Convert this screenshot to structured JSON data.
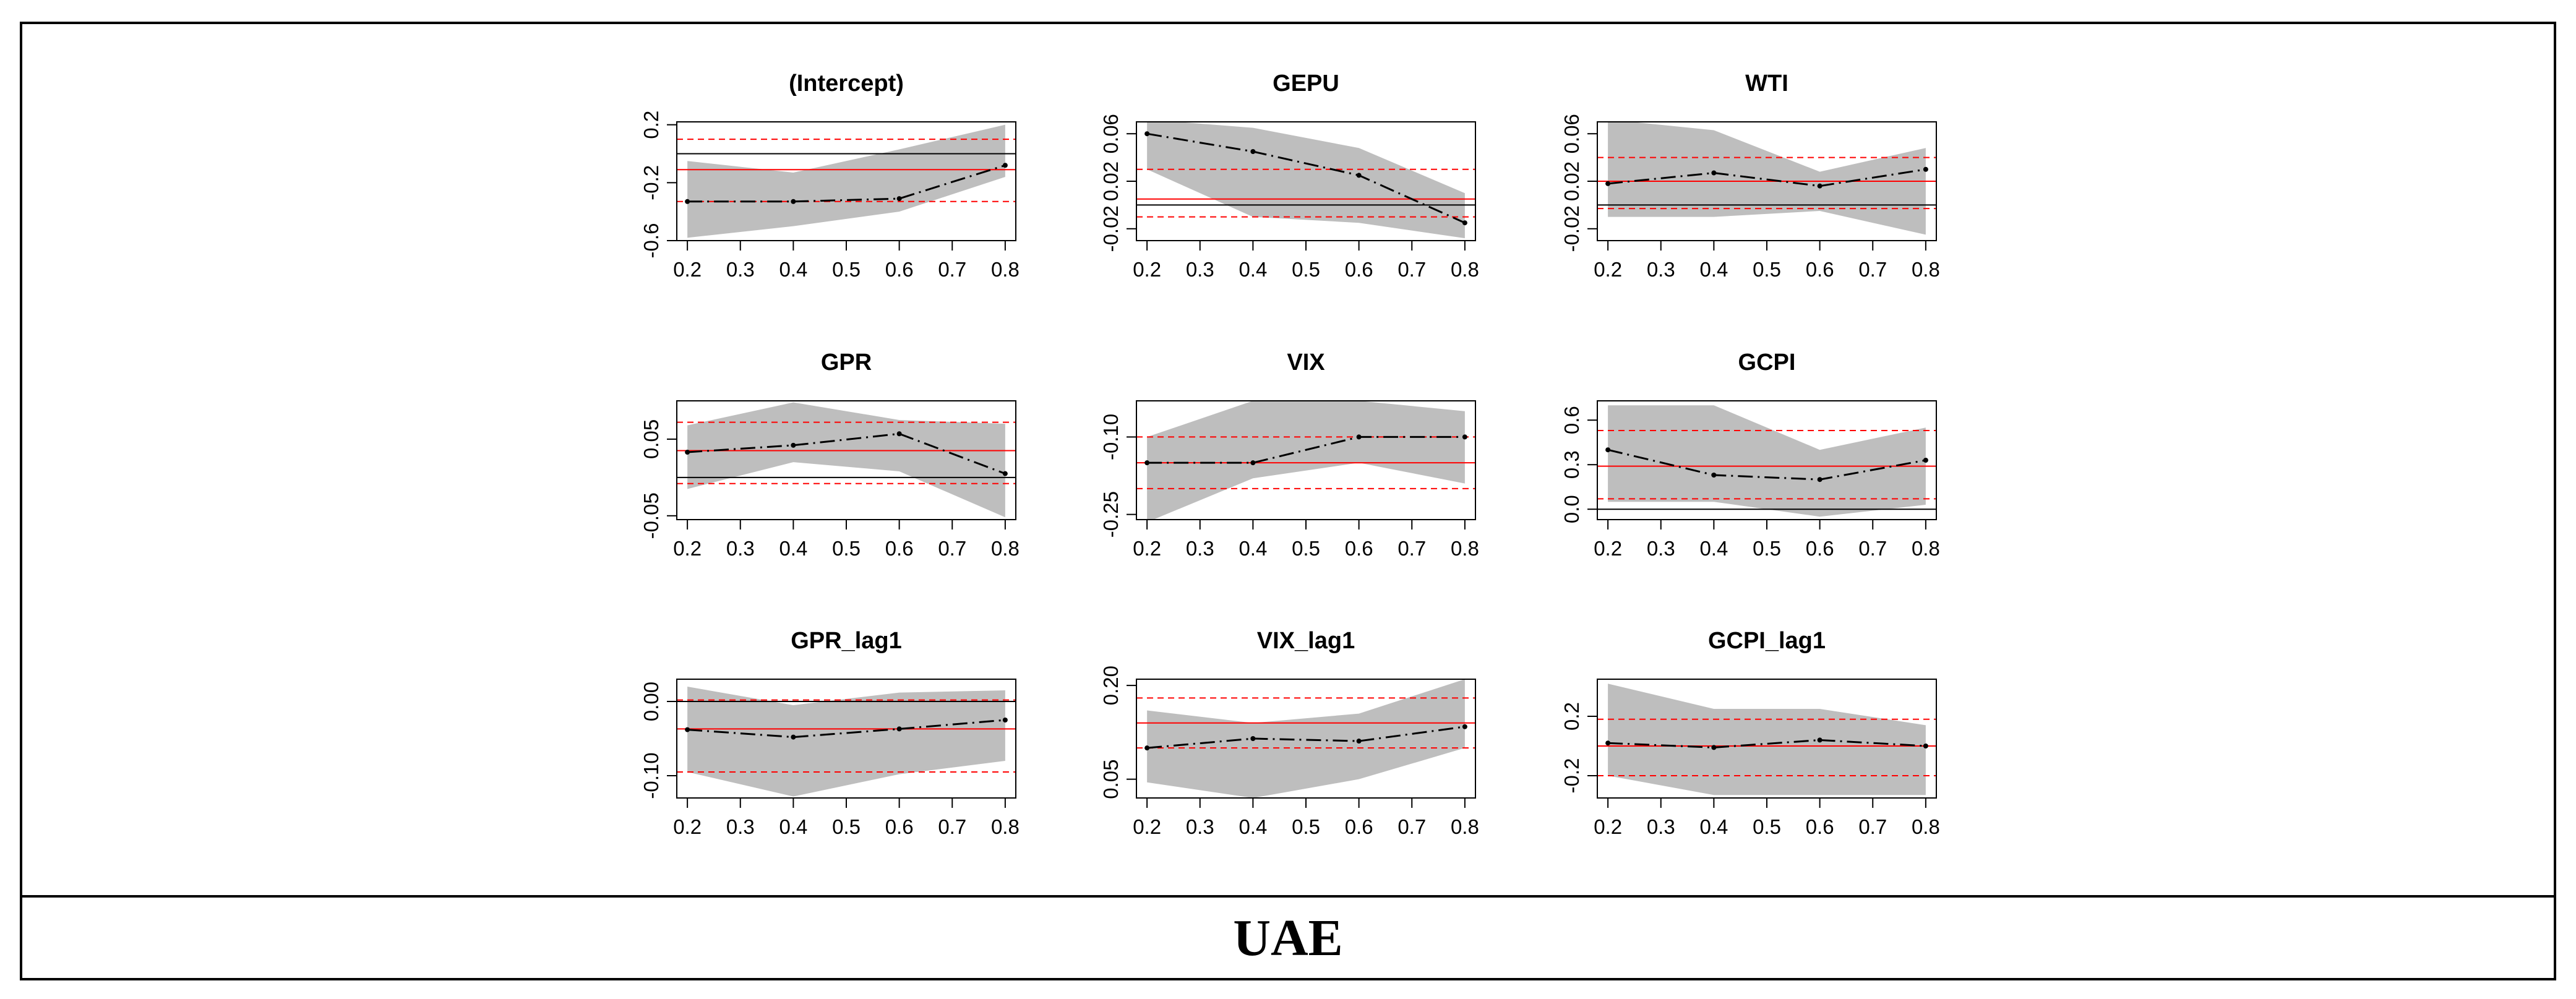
{
  "country_label": "UAE",
  "colors": {
    "band": "#bebebe",
    "estimate": "#000000",
    "ols": "#ff0000",
    "ols_ci": "#ff0000",
    "zero": "#000000"
  },
  "chart_data": [
    {
      "type": "line",
      "title": "(Intercept)",
      "x": [
        0.2,
        0.4,
        0.6,
        0.8
      ],
      "xticks": [
        0.2,
        0.3,
        0.4,
        0.5,
        0.6,
        0.7,
        0.8
      ],
      "xlim": [
        0.18,
        0.82
      ],
      "ylim": [
        -0.6,
        0.22
      ],
      "yticks": [
        -0.6,
        -0.2,
        0.2
      ],
      "ytick_labels": [
        "-0.6",
        "-0.2",
        "0.2"
      ],
      "estimate": [
        -0.33,
        -0.33,
        -0.31,
        -0.08
      ],
      "lower": [
        -0.58,
        -0.5,
        -0.4,
        -0.16
      ],
      "upper": [
        -0.05,
        -0.13,
        0.03,
        0.2
      ],
      "ols": -0.11,
      "ols_lower": -0.33,
      "ols_upper": 0.1,
      "zero": true
    },
    {
      "type": "line",
      "title": "GEPU",
      "x": [
        0.2,
        0.4,
        0.6,
        0.8
      ],
      "xticks": [
        0.2,
        0.3,
        0.4,
        0.5,
        0.6,
        0.7,
        0.8
      ],
      "xlim": [
        0.18,
        0.82
      ],
      "ylim": [
        -0.03,
        0.07
      ],
      "yticks": [
        -0.02,
        0.02,
        0.06
      ],
      "ytick_labels": [
        "-0.02",
        "0.02",
        "0.06"
      ],
      "estimate": [
        0.06,
        0.045,
        0.025,
        -0.015
      ],
      "lower": [
        0.03,
        -0.01,
        -0.015,
        -0.028
      ],
      "upper": [
        0.072,
        0.065,
        0.048,
        0.01
      ],
      "ols": 0.005,
      "ols_lower": -0.01,
      "ols_upper": 0.03,
      "zero": true
    },
    {
      "type": "line",
      "title": "WTI",
      "x": [
        0.2,
        0.4,
        0.6,
        0.8
      ],
      "xticks": [
        0.2,
        0.3,
        0.4,
        0.5,
        0.6,
        0.7,
        0.8
      ],
      "xlim": [
        0.18,
        0.82
      ],
      "ylim": [
        -0.03,
        0.07
      ],
      "yticks": [
        -0.02,
        0.02,
        0.06
      ],
      "ytick_labels": [
        "-0.02",
        "0.02",
        "0.06"
      ],
      "estimate": [
        0.018,
        0.027,
        0.016,
        0.03
      ],
      "lower": [
        -0.01,
        -0.01,
        -0.005,
        -0.025
      ],
      "upper": [
        0.072,
        0.063,
        0.028,
        0.048
      ],
      "ols": 0.02,
      "ols_lower": -0.003,
      "ols_upper": 0.04,
      "zero": true
    },
    {
      "type": "line",
      "title": "GPR",
      "x": [
        0.2,
        0.4,
        0.6,
        0.8
      ],
      "xticks": [
        0.2,
        0.3,
        0.4,
        0.5,
        0.6,
        0.7,
        0.8
      ],
      "xlim": [
        0.18,
        0.82
      ],
      "ylim": [
        -0.055,
        0.1
      ],
      "yticks": [
        -0.05,
        0.05
      ],
      "ytick_labels": [
        "-0.05",
        "0.05"
      ],
      "estimate": [
        0.033,
        0.042,
        0.057,
        0.005
      ],
      "lower": [
        -0.015,
        0.02,
        0.008,
        -0.052
      ],
      "upper": [
        0.068,
        0.098,
        0.075,
        0.07
      ],
      "ols": 0.035,
      "ols_lower": -0.008,
      "ols_upper": 0.072,
      "zero": true
    },
    {
      "type": "line",
      "title": "VIX",
      "x": [
        0.2,
        0.4,
        0.6,
        0.8
      ],
      "xticks": [
        0.2,
        0.3,
        0.4,
        0.5,
        0.6,
        0.7,
        0.8
      ],
      "xlim": [
        0.18,
        0.82
      ],
      "ylim": [
        -0.26,
        -0.03
      ],
      "yticks": [
        -0.25,
        -0.1
      ],
      "ytick_labels": [
        "-0.25",
        "-0.10"
      ],
      "estimate": [
        -0.15,
        -0.15,
        -0.1,
        -0.1
      ],
      "lower": [
        -0.265,
        -0.18,
        -0.15,
        -0.19
      ],
      "upper": [
        -0.1,
        -0.03,
        -0.03,
        -0.05
      ],
      "ols": -0.15,
      "ols_lower": -0.2,
      "ols_upper": -0.1,
      "zero": false
    },
    {
      "type": "line",
      "title": "GCPI",
      "x": [
        0.2,
        0.4,
        0.6,
        0.8
      ],
      "xticks": [
        0.2,
        0.3,
        0.4,
        0.5,
        0.6,
        0.7,
        0.8
      ],
      "xlim": [
        0.18,
        0.82
      ],
      "ylim": [
        -0.07,
        0.73
      ],
      "yticks": [
        0.0,
        0.3,
        0.6
      ],
      "ytick_labels": [
        "0.0",
        "0.3",
        "0.6"
      ],
      "estimate": [
        0.4,
        0.23,
        0.2,
        0.33
      ],
      "lower": [
        0.05,
        0.05,
        -0.05,
        0.03
      ],
      "upper": [
        0.7,
        0.7,
        0.4,
        0.55
      ],
      "ols": 0.29,
      "ols_lower": 0.07,
      "ols_upper": 0.53,
      "zero": true
    },
    {
      "type": "line",
      "title": "GPR_lag1",
      "x": [
        0.2,
        0.4,
        0.6,
        0.8
      ],
      "xticks": [
        0.2,
        0.3,
        0.4,
        0.5,
        0.6,
        0.7,
        0.8
      ],
      "xlim": [
        0.18,
        0.82
      ],
      "ylim": [
        -0.13,
        0.03
      ],
      "yticks": [
        -0.1,
        0.0
      ],
      "ytick_labels": [
        "-0.10",
        "0.00"
      ],
      "estimate": [
        -0.038,
        -0.048,
        -0.037,
        -0.025
      ],
      "lower": [
        -0.095,
        -0.128,
        -0.098,
        -0.08
      ],
      "upper": [
        0.02,
        -0.005,
        0.012,
        0.015
      ],
      "ols": -0.037,
      "ols_lower": -0.095,
      "ols_upper": 0.002,
      "zero": true
    },
    {
      "type": "line",
      "title": "VIX_lag1",
      "x": [
        0.2,
        0.4,
        0.6,
        0.8
      ],
      "xticks": [
        0.2,
        0.3,
        0.4,
        0.5,
        0.6,
        0.7,
        0.8
      ],
      "xlim": [
        0.18,
        0.82
      ],
      "ylim": [
        0.02,
        0.21
      ],
      "yticks": [
        0.05,
        0.2
      ],
      "ytick_labels": [
        "0.05",
        "0.20"
      ],
      "estimate": [
        0.1,
        0.115,
        0.111,
        0.134
      ],
      "lower": [
        0.045,
        0.02,
        0.05,
        0.1
      ],
      "upper": [
        0.16,
        0.14,
        0.155,
        0.21
      ],
      "ols": 0.14,
      "ols_lower": 0.1,
      "ols_upper": 0.18,
      "zero": false
    },
    {
      "type": "line",
      "title": "GCPI_lag1",
      "x": [
        0.2,
        0.4,
        0.6,
        0.8
      ],
      "xticks": [
        0.2,
        0.3,
        0.4,
        0.5,
        0.6,
        0.7,
        0.8
      ],
      "xlim": [
        0.18,
        0.82
      ],
      "ylim": [
        -0.35,
        0.45
      ],
      "yticks": [
        -0.2,
        0.2
      ],
      "ytick_labels": [
        "-0.2",
        "0.2"
      ],
      "estimate": [
        0.02,
        -0.01,
        0.04,
        0.0
      ],
      "lower": [
        -0.2,
        -0.33,
        -0.33,
        -0.33
      ],
      "upper": [
        0.42,
        0.25,
        0.25,
        0.14
      ],
      "ols": 0.0,
      "ols_lower": -0.2,
      "ols_upper": 0.18,
      "zero": false
    }
  ]
}
